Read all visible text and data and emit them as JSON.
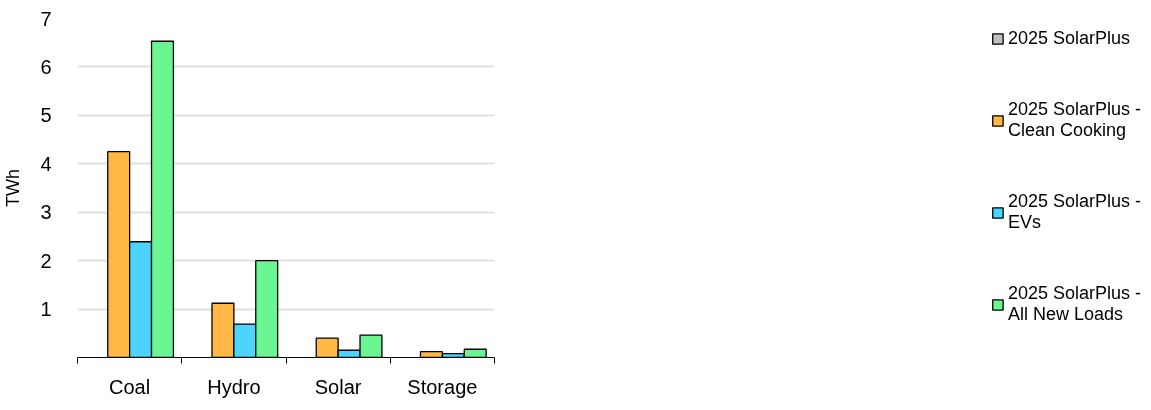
{
  "chart_data": {
    "type": "bar",
    "ylabel": "TWh",
    "categories": [
      "Coal",
      "Hydro",
      "Solar",
      "Storage"
    ],
    "series": [
      {
        "name": "2025 SolarPlus",
        "color": "#bfbfbf",
        "values": [
          null,
          null,
          null,
          null
        ]
      },
      {
        "name": "2025 SolarPlus - Clean Cooking",
        "color": "#ffb845",
        "values": [
          4.25,
          1.12,
          0.4,
          0.12
        ]
      },
      {
        "name": "2025 SolarPlus - EVs",
        "color": "#4ad4ff",
        "values": [
          2.39,
          0.69,
          0.15,
          0.08
        ]
      },
      {
        "name": "2025 SolarPlus - All New Loads",
        "color": "#6af592",
        "values": [
          6.53,
          2.0,
          0.46,
          0.17
        ]
      }
    ],
    "ylim": [
      0,
      7
    ],
    "yticks": [
      1,
      2,
      3,
      4,
      5,
      6,
      7
    ],
    "grid": "y",
    "legend": "right"
  }
}
